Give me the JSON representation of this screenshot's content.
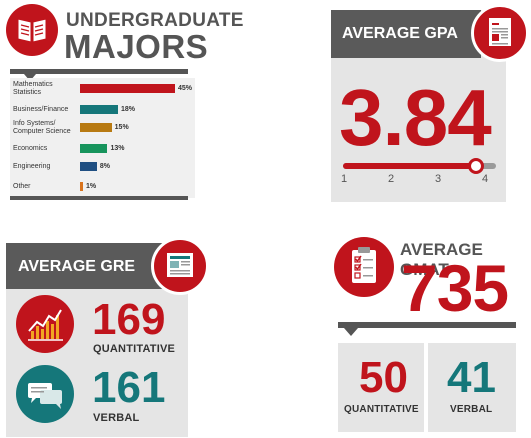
{
  "majors": {
    "title_line1": "UNDERGRADUATE",
    "title_line2": "MAJORS",
    "rows": [
      {
        "label": "Mathematics Statistics",
        "value": 45,
        "value_label": "45%",
        "color": "#c0141c"
      },
      {
        "label": "Business/Finance",
        "value": 18,
        "value_label": "18%",
        "color": "#15777a"
      },
      {
        "label": "Info Systems/ Computer Science",
        "value": 15,
        "value_label": "15%",
        "color": "#b87a12"
      },
      {
        "label": "Economics",
        "value": 13,
        "value_label": "13%",
        "color": "#17945c"
      },
      {
        "label": "Engineering",
        "value": 8,
        "value_label": "8%",
        "color": "#1f4f82"
      },
      {
        "label": "Other",
        "value": 1,
        "value_label": "1%",
        "color": "#d9741e"
      }
    ]
  },
  "gpa": {
    "title": "AVERAGE GPA",
    "value": "3.84",
    "scale_min": 1,
    "scale_max": 4,
    "slider_value": 3.84,
    "ticks": [
      "1",
      "2",
      "3",
      "4"
    ]
  },
  "gre": {
    "title": "AVERAGE GRE",
    "quant_value": "169",
    "quant_label": "QUANTITATIVE",
    "verbal_value": "161",
    "verbal_label": "VERBAL"
  },
  "gmat": {
    "title": "AVERAGE GMAT",
    "value": "735",
    "quant_value": "50",
    "quant_label": "QUANTITATIVE",
    "verbal_value": "41",
    "verbal_label": "VERBAL"
  },
  "colors": {
    "red": "#c0141c",
    "teal": "#15777a",
    "dark": "#5a5a5a",
    "panel": "#e5e5e5"
  }
}
